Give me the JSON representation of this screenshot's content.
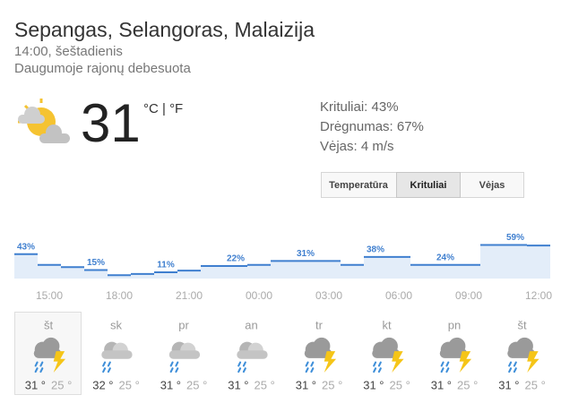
{
  "header": {
    "location": "Sepangas, Selangoras, Malaizija",
    "time": "14:00, šeštadienis",
    "condition": "Daugumoje rajonų debesuota"
  },
  "current": {
    "temperature": "31",
    "units": "°C | °F"
  },
  "details": [
    "Krituliai: 43%",
    "Drėgnumas: 67%",
    "Vėjas: 4 m/s"
  ],
  "tabs": [
    "Temperatūra",
    "Krituliai",
    "Vėjas"
  ],
  "chart_data": {
    "type": "step",
    "color": "#3f7fcf",
    "fill": "#e3edf9",
    "categories": [
      null,
      "15:00",
      null,
      null,
      "18:00",
      null,
      null,
      "21:00",
      null,
      null,
      "00:00",
      null,
      null,
      "03:00",
      null,
      null,
      "06:00",
      null,
      null,
      "09:00",
      null,
      null,
      "12:00"
    ],
    "values": [
      43,
      24,
      20,
      15,
      6,
      8,
      11,
      14,
      22,
      22,
      24,
      31,
      31,
      31,
      24,
      38,
      38,
      24,
      24,
      24,
      59,
      59,
      58
    ],
    "value_labels": [
      "43%",
      null,
      null,
      "15%",
      null,
      null,
      "11%",
      null,
      null,
      "22%",
      null,
      null,
      "31%",
      null,
      null,
      "38%",
      null,
      null,
      "24%",
      null,
      null,
      "59%",
      null
    ],
    "ylim": [
      0,
      100
    ]
  },
  "days": [
    {
      "name": "št",
      "high": "31 °",
      "low": "25 °"
    },
    {
      "name": "sk",
      "high": "32 °",
      "low": "25 °"
    },
    {
      "name": "pr",
      "high": "31 °",
      "low": "25 °"
    },
    {
      "name": "an",
      "high": "31 °",
      "low": "25 °"
    },
    {
      "name": "tr",
      "high": "31 °",
      "low": "25 °"
    },
    {
      "name": "kt",
      "high": "31 °",
      "low": "25 °"
    },
    {
      "name": "pn",
      "high": "31 °",
      "low": "25 °"
    },
    {
      "name": "št",
      "high": "31 °",
      "low": "25 °"
    }
  ]
}
